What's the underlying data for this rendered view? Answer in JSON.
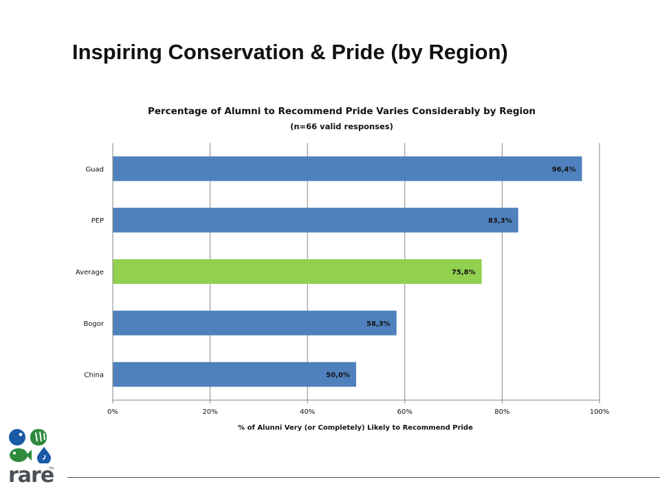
{
  "slide": {
    "title": "Inspiring Conservation & Pride (by Region)"
  },
  "logo": {
    "text": "rare",
    "tm": "TM",
    "colors": {
      "blue": "#1a5aa6",
      "green": "#2f8a3e"
    }
  },
  "chart_data": {
    "type": "bar",
    "orientation": "horizontal",
    "title": "Percentage of Alumni to Recommend Pride Varies Considerably by Region",
    "subtitle": "(n=66 valid responses)",
    "xlabel": "% of Alunni Very (or Completely) Likely to Recommend Pride",
    "ylabel": "",
    "categories": [
      "Guad",
      "PEP",
      "Average",
      "Bogor",
      "China"
    ],
    "values": [
      96.4,
      83.3,
      75.8,
      58.3,
      50.0
    ],
    "data_labels": [
      "96,4%",
      "83,3%",
      "75,8%",
      "58,3%",
      "50,0%"
    ],
    "bar_colors": [
      "#4f81bd",
      "#4f81bd",
      "#92d050",
      "#4f81bd",
      "#4f81bd"
    ],
    "xlim": [
      0,
      100
    ],
    "xticks": [
      0,
      20,
      40,
      60,
      80,
      100
    ],
    "xtick_labels": [
      "0%",
      "20%",
      "40%",
      "60%",
      "80%",
      "100%"
    ],
    "grid": true,
    "legend": "none"
  }
}
